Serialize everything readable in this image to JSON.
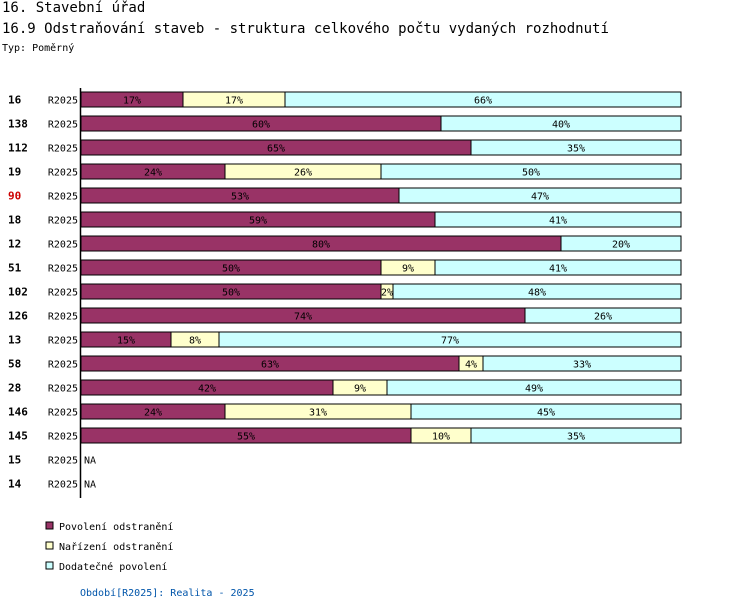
{
  "section_title": "16. Stavební úřad",
  "chart_title": "16.9 Odstraňování staveb - struktura celkového počtu vydaných rozhodnutí",
  "type_label": "Typ: Poměrný",
  "footer": "Období[R2025]: Realita - 2025",
  "colors": {
    "povoleni": "#993366",
    "narizeni": "#ffffcc",
    "dodatecne": "#ccffff",
    "highlight": "#cc0000",
    "footer": "#0055aa"
  },
  "chart_data": {
    "type": "bar",
    "orientation": "horizontal",
    "stacked": "percent",
    "title": "16.9 Odstraňování staveb - struktura celkového počtu vydaných rozhodnutí",
    "xlim": [
      0,
      100
    ],
    "legend_position": "bottom-left",
    "legend": [
      "Povolení odstranění",
      "Nařízení odstranění",
      "Dodatečné povolení"
    ],
    "rows": [
      {
        "code": "16",
        "period": "R2025",
        "values": [
          17,
          17,
          66
        ],
        "labels": [
          "17%",
          "17%",
          "66%"
        ]
      },
      {
        "code": "138",
        "period": "R2025",
        "values": [
          60,
          0,
          40
        ],
        "labels": [
          "60%",
          "",
          "40%"
        ]
      },
      {
        "code": "112",
        "period": "R2025",
        "values": [
          65,
          0,
          35
        ],
        "labels": [
          "65%",
          "",
          "35%"
        ]
      },
      {
        "code": "19",
        "period": "R2025",
        "values": [
          24,
          26,
          50
        ],
        "labels": [
          "24%",
          "26%",
          "50%"
        ]
      },
      {
        "code": "90",
        "period": "R2025",
        "values": [
          53,
          0,
          47
        ],
        "labels": [
          "53%",
          "",
          "47%"
        ],
        "highlight": true
      },
      {
        "code": "18",
        "period": "R2025",
        "values": [
          59,
          0,
          41
        ],
        "labels": [
          "59%",
          "",
          "41%"
        ]
      },
      {
        "code": "12",
        "period": "R2025",
        "values": [
          80,
          0,
          20
        ],
        "labels": [
          "80%",
          "",
          "20%"
        ]
      },
      {
        "code": "51",
        "period": "R2025",
        "values": [
          50,
          9,
          41
        ],
        "labels": [
          "50%",
          "9%",
          "41%"
        ]
      },
      {
        "code": "102",
        "period": "R2025",
        "values": [
          50,
          2,
          48
        ],
        "labels": [
          "50%",
          "2%",
          "48%"
        ]
      },
      {
        "code": "126",
        "period": "R2025",
        "values": [
          74,
          0,
          26
        ],
        "labels": [
          "74%",
          "",
          "26%"
        ]
      },
      {
        "code": "13",
        "period": "R2025",
        "values": [
          15,
          8,
          77
        ],
        "labels": [
          "15%",
          "8%",
          "77%"
        ]
      },
      {
        "code": "58",
        "period": "R2025",
        "values": [
          63,
          4,
          33
        ],
        "labels": [
          "63%",
          "4%",
          "33%"
        ]
      },
      {
        "code": "28",
        "period": "R2025",
        "values": [
          42,
          9,
          49
        ],
        "labels": [
          "42%",
          "9%",
          "49%"
        ]
      },
      {
        "code": "146",
        "period": "R2025",
        "values": [
          24,
          31,
          45
        ],
        "labels": [
          "24%",
          "31%",
          "45%"
        ]
      },
      {
        "code": "145",
        "period": "R2025",
        "values": [
          55,
          10,
          35
        ],
        "labels": [
          "55%",
          "10%",
          "35%"
        ]
      },
      {
        "code": "15",
        "period": "R2025",
        "values": null,
        "na_label": "NA"
      },
      {
        "code": "14",
        "period": "R2025",
        "values": null,
        "na_label": "NA"
      }
    ]
  }
}
